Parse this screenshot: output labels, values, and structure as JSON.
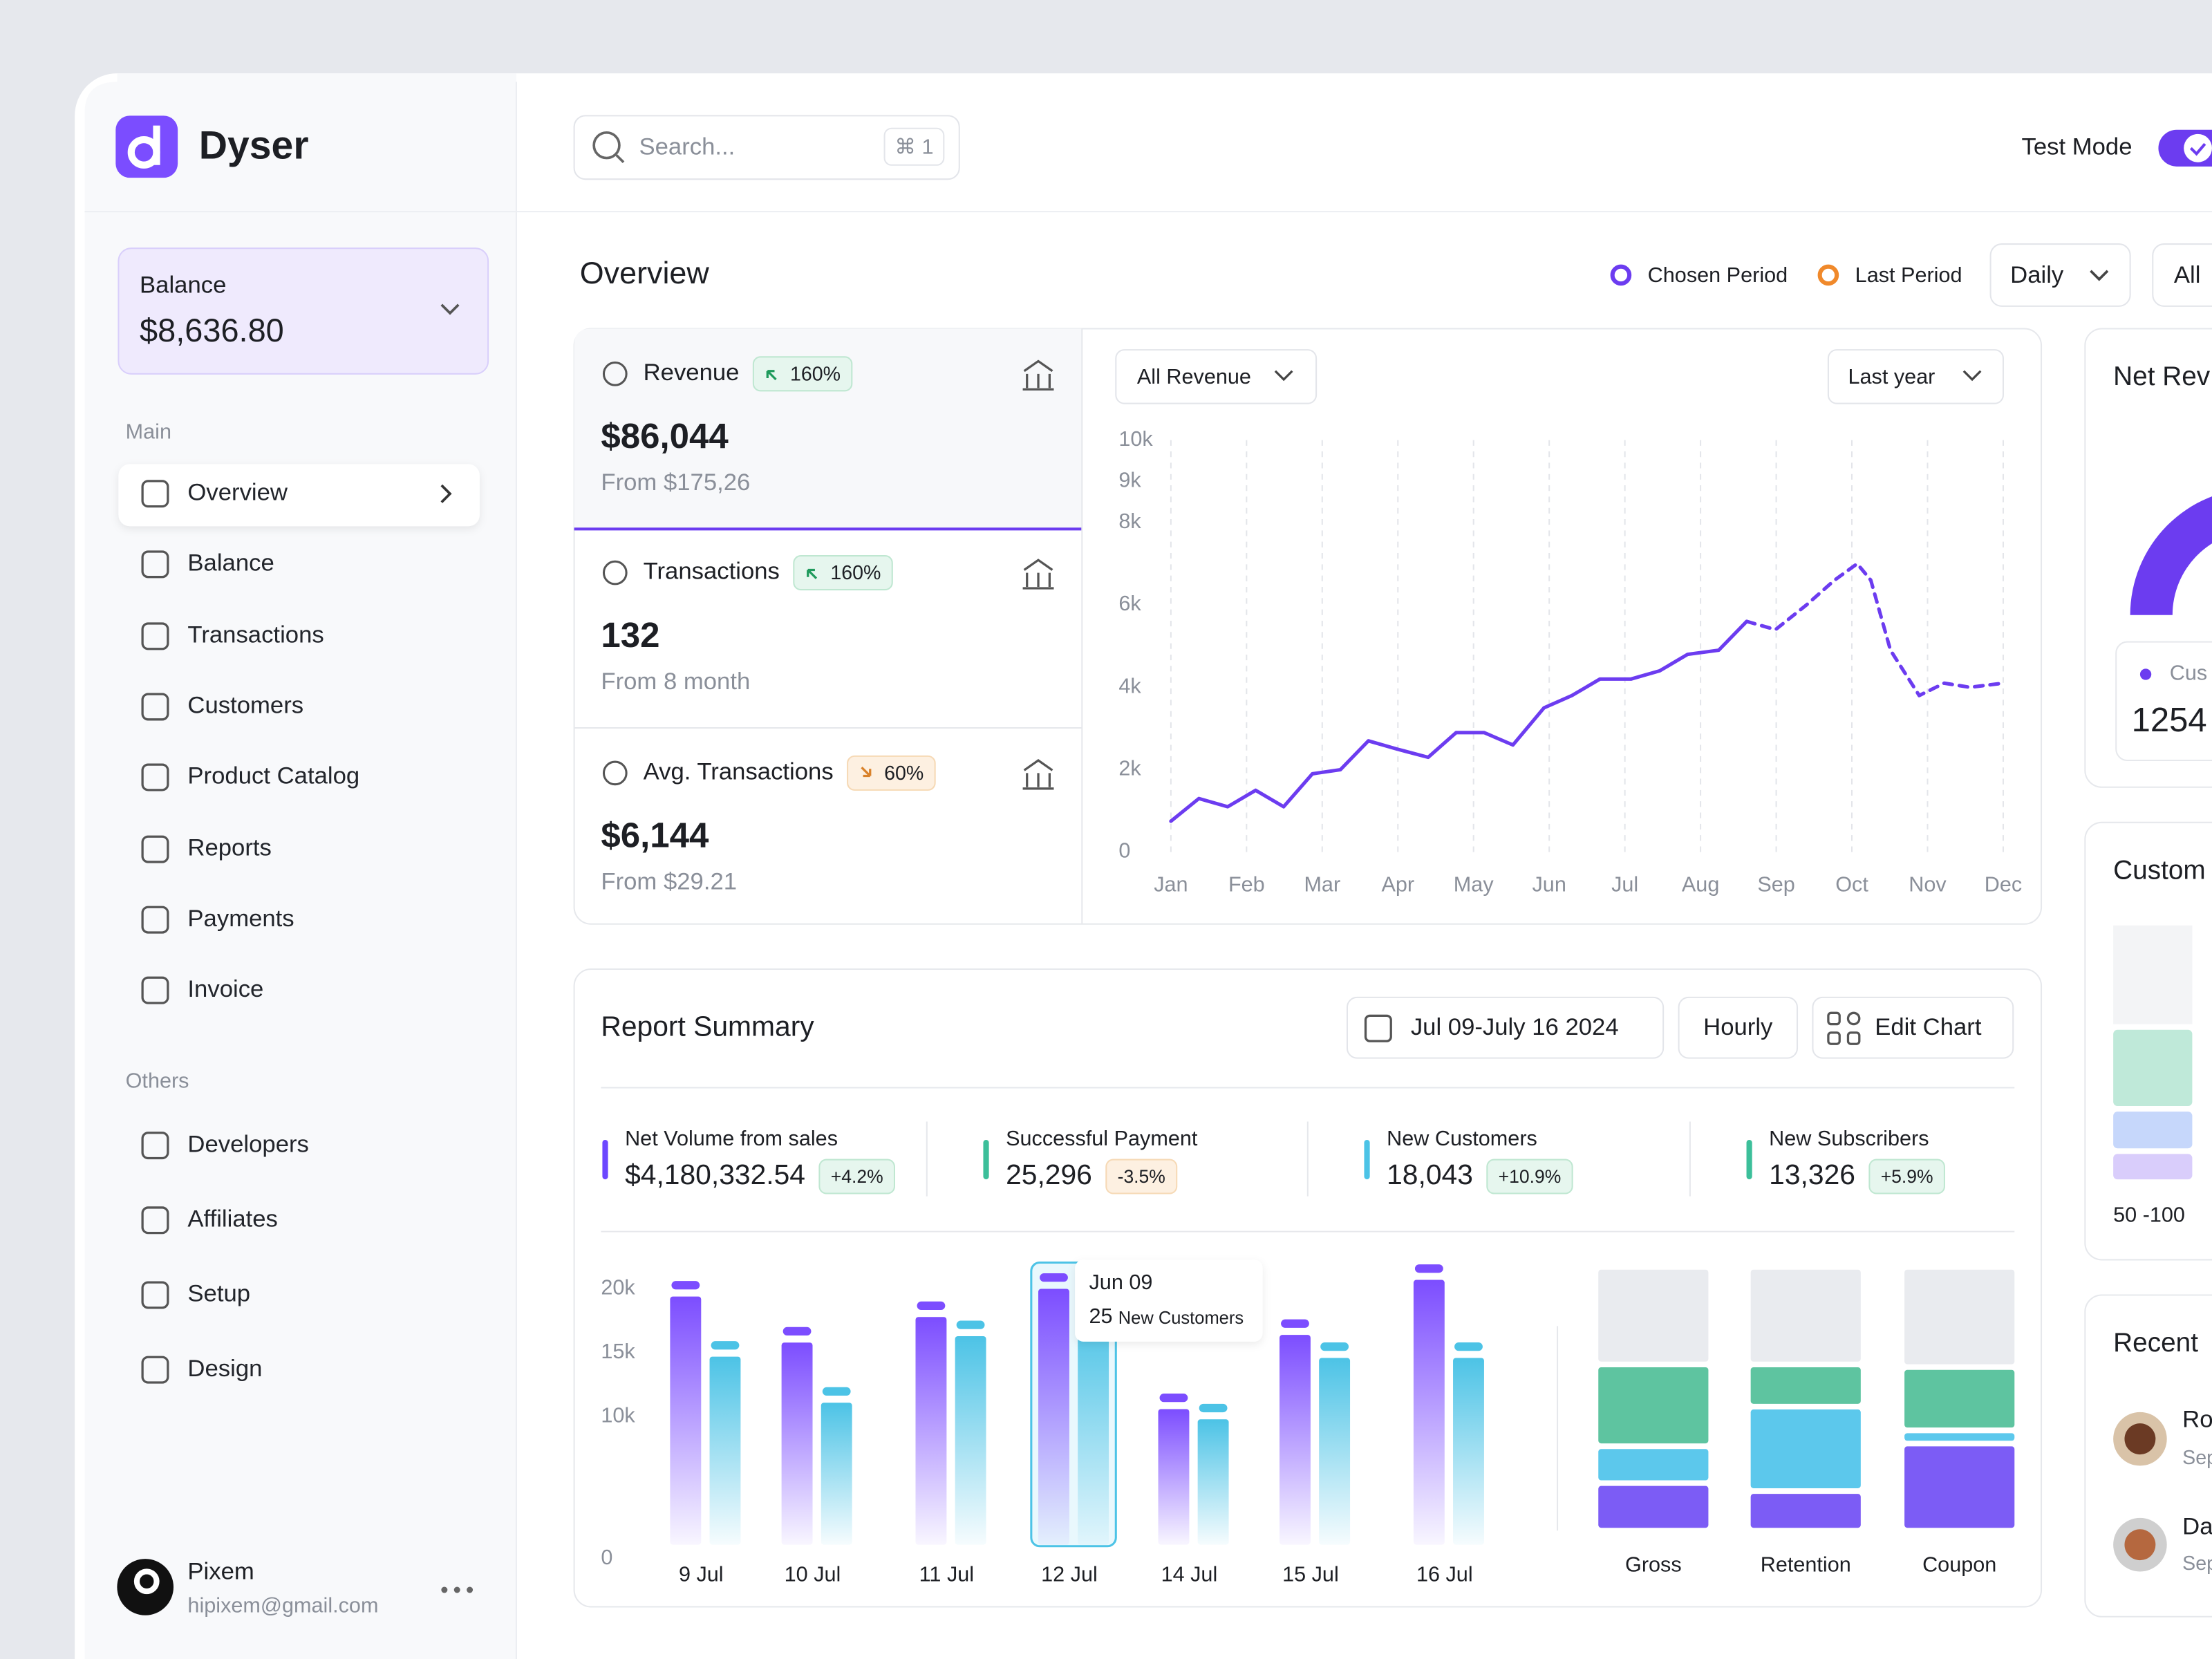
{
  "sidebar": {
    "brand": "Dyser",
    "balance": {
      "label": "Balance",
      "amount": "$8,636.80"
    },
    "main_label": "Main",
    "main_items": [
      "Overview",
      "Balance",
      "Transactions",
      "Customers",
      "Product Catalog",
      "Reports",
      "Payments",
      "Invoice"
    ],
    "others_label": "Others",
    "others_items": [
      "Developers",
      "Affiliates",
      "Setup",
      "Design"
    ],
    "user": {
      "name": "Pixem",
      "email": "hipixem@gmail.com"
    }
  },
  "topbar": {
    "search_placeholder": "Search...",
    "shortcut": "⌘ 1",
    "test_mode": "Test Mode"
  },
  "overview": {
    "title": "Overview",
    "legend": [
      {
        "label": "Chosen Period",
        "color": "#6c3cf0"
      },
      {
        "label": "Last Period",
        "color": "#f0892b"
      }
    ],
    "period": "Daily",
    "filter": "All",
    "metrics": [
      {
        "label": "Revenue",
        "change": "160%",
        "trend": "up",
        "value": "$86,044",
        "from": "From $175,26"
      },
      {
        "label": "Transactions",
        "change": "160%",
        "trend": "up",
        "value": "132",
        "from": "From 8 month"
      },
      {
        "label": "Avg. Transactions",
        "change": "60%",
        "trend": "down",
        "value": "$6,144",
        "from": "From $29.21"
      }
    ],
    "revenue_chart": {
      "type": "line",
      "filter": "All Revenue",
      "range": "Last year",
      "color": "#6c3cf0",
      "dashed_from_x": 7.61,
      "x": [
        0,
        0.37,
        0.75,
        1.12,
        1.49,
        1.87,
        2.24,
        2.61,
        2.99,
        3.4,
        3.77,
        4.14,
        4.52,
        4.93,
        5.3,
        5.67,
        6.08,
        6.46,
        6.83,
        7.24,
        7.61,
        7.99,
        8.4,
        8.77,
        9.07,
        9.25,
        9.51,
        9.89,
        10.22,
        10.56,
        11
      ],
      "values": [
        750,
        1300,
        1100,
        1500,
        1100,
        1900,
        2000,
        2700,
        2500,
        2300,
        2900,
        2900,
        2600,
        3500,
        3800,
        4200,
        4200,
        4400,
        4800,
        4900,
        5600,
        5400,
        6000,
        6600,
        7000,
        6600,
        4900,
        3800,
        4100,
        4000,
        4100
      ],
      "xlim": [
        0,
        11
      ],
      "xticks": [
        {
          "value": 0,
          "label": "Jan"
        },
        {
          "value": 1,
          "label": "Feb"
        },
        {
          "value": 2,
          "label": "Mar"
        },
        {
          "value": 3,
          "label": "Apr"
        },
        {
          "value": 4,
          "label": "May"
        },
        {
          "value": 5,
          "label": "Jun"
        },
        {
          "value": 6,
          "label": "Jul"
        },
        {
          "value": 7,
          "label": "Aug"
        },
        {
          "value": 8,
          "label": "Sep"
        },
        {
          "value": 9,
          "label": "Oct"
        },
        {
          "value": 10,
          "label": "Nov"
        },
        {
          "value": 11,
          "label": "Dec"
        }
      ],
      "ylim": [
        0,
        10000
      ],
      "yticks": [
        0,
        {
          "value": 2000,
          "label": "2k"
        },
        {
          "value": 4000,
          "label": "4k"
        },
        {
          "value": 6000,
          "label": "6k"
        },
        {
          "value": 8000,
          "label": "8k"
        },
        {
          "value": 9000,
          "label": "9k"
        },
        {
          "value": 10000,
          "label": "10k"
        }
      ],
      "grid": true
    }
  },
  "report_summary": {
    "title": "Report Summary",
    "date_range": "Jul 09-July 16 2024",
    "interval": "Hourly",
    "edit": "Edit Chart",
    "stats": [
      {
        "label": "Net Volume from sales",
        "value": "$4,180,332.54",
        "change": "+4.2%",
        "trend": "up",
        "color": "#6c47ff"
      },
      {
        "label": "Successful Payment",
        "value": "25,296",
        "change": "-3.5%",
        "trend": "down",
        "color": "#3cbf9a"
      },
      {
        "label": "New Customers",
        "value": "18,043",
        "change": "+10.9%",
        "trend": "up",
        "color": "#4cc3e6"
      },
      {
        "label": "New Subscribers",
        "value": "13,326",
        "change": "+5.9%",
        "trend": "up",
        "color": "#3cbf9a"
      }
    ],
    "bar_chart": {
      "type": "bar",
      "categories": [
        "9 Jul",
        "10 Jul",
        "11 Jul",
        "12 Jul",
        "14 Jul",
        "15 Jul",
        "16 Jul"
      ],
      "series": [
        {
          "color": "#7c4dff",
          "values": [
            19400,
            15800,
            17800,
            20000,
            10600,
            16400,
            20700
          ]
        },
        {
          "color": "#4cc3e6",
          "values": [
            14700,
            11100,
            16300,
            18000,
            9800,
            14600,
            14600
          ]
        }
      ],
      "ylim": [
        0,
        21500
      ],
      "yticks": [
        0,
        {
          "value": 10000,
          "label": "10k"
        },
        {
          "value": 15000,
          "label": "15k"
        },
        {
          "value": 20000,
          "label": "20k"
        }
      ],
      "tooltip": {
        "category_index": 3,
        "date": "Jun 09",
        "value": "25",
        "label": "New Customers"
      }
    },
    "stacked_chart": {
      "type": "stacked_bar",
      "categories": [
        "Gross",
        "Retention",
        "Coupon"
      ],
      "ylim": [
        0,
        100
      ],
      "series": [
        {
          "color": "#7c5cf5",
          "values": [
            18,
            15,
            33
          ]
        },
        {
          "color": "#5cc8ec",
          "values": [
            14,
            32,
            5
          ]
        },
        {
          "color": "#5ec4a0",
          "values": [
            31,
            16,
            24
          ]
        },
        {
          "color": "#e9ebef",
          "values": [
            37,
            37,
            38
          ]
        }
      ]
    }
  },
  "right_panel": {
    "net_revenue_title": "Net Rev",
    "customer_label": "Cus",
    "customer_value": "1254",
    "customers_title": "Custom",
    "range_label": "50 -100",
    "recent_title": "Recent",
    "recent": [
      {
        "name": "Ro",
        "date": "Sep"
      },
      {
        "name": "Da",
        "date": "Sep"
      }
    ]
  }
}
